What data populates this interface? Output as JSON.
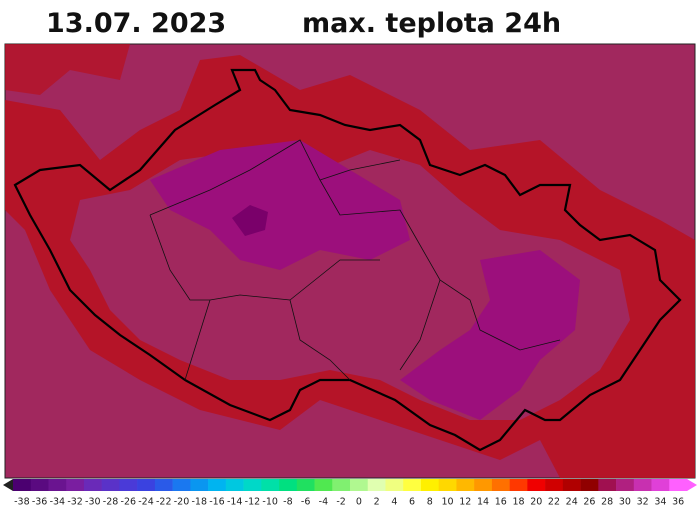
{
  "header": {
    "date": "13.07.  2023",
    "title": "max. teplota 24h"
  },
  "legend": {
    "labels": [
      -38,
      -36,
      -34,
      -32,
      -30,
      -28,
      -26,
      -24,
      -22,
      -20,
      -18,
      -16,
      -14,
      -12,
      -10,
      -8,
      -6,
      -4,
      -2,
      0,
      2,
      4,
      6,
      8,
      10,
      12,
      14,
      16,
      18,
      20,
      22,
      24,
      26,
      28,
      30,
      32,
      34,
      36
    ],
    "colors": [
      "#4b0070",
      "#5a0a80",
      "#6a1490",
      "#7a1ea0",
      "#6a2ab8",
      "#5a32c8",
      "#4a3ad8",
      "#3a42e0",
      "#2a5ae8",
      "#1a78f0",
      "#0a96f0",
      "#00b4f0",
      "#00c8e0",
      "#00d8c8",
      "#00e0a8",
      "#00e080",
      "#20e060",
      "#50e850",
      "#80f070",
      "#b0f890",
      "#e0ffb0",
      "#f0ff80",
      "#ffff40",
      "#fff000",
      "#ffd800",
      "#ffb800",
      "#ff9800",
      "#ff7000",
      "#ff3800",
      "#f00000",
      "#d00000",
      "#b00000",
      "#900000",
      "#a01050",
      "#b02080",
      "#c830b0",
      "#e040d8",
      "#ff60ff"
    ]
  }
}
